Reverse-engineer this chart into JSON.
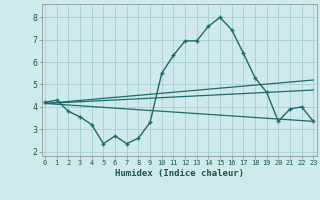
{
  "xlabel": "Humidex (Indice chaleur)",
  "background_color": "#ceeaea",
  "grid_color": "#aacfcf",
  "line_color": "#1a6b6b",
  "x_ticks": [
    0,
    1,
    2,
    3,
    4,
    5,
    6,
    7,
    8,
    9,
    10,
    11,
    12,
    13,
    14,
    15,
    16,
    17,
    18,
    19,
    20,
    21,
    22,
    23
  ],
  "ylim": [
    1.8,
    8.6
  ],
  "xlim": [
    -0.3,
    23.3
  ],
  "curve1_x": [
    0,
    1,
    2,
    3,
    4,
    5,
    6,
    7,
    8,
    9,
    10,
    11,
    12,
    13,
    14,
    15,
    16,
    17,
    18,
    19,
    20,
    21,
    22,
    23
  ],
  "curve1_y": [
    4.2,
    4.3,
    3.8,
    3.55,
    3.2,
    2.35,
    2.7,
    2.35,
    2.6,
    3.3,
    5.5,
    6.3,
    6.95,
    6.95,
    7.6,
    8.0,
    7.45,
    6.4,
    5.3,
    4.65,
    3.35,
    3.9,
    4.0,
    3.35
  ],
  "line1_x": [
    0,
    23
  ],
  "line1_y": [
    4.15,
    4.75
  ],
  "line2_x": [
    0,
    23
  ],
  "line2_y": [
    4.15,
    3.35
  ],
  "line3_x": [
    0,
    23
  ],
  "line3_y": [
    4.15,
    5.2
  ]
}
